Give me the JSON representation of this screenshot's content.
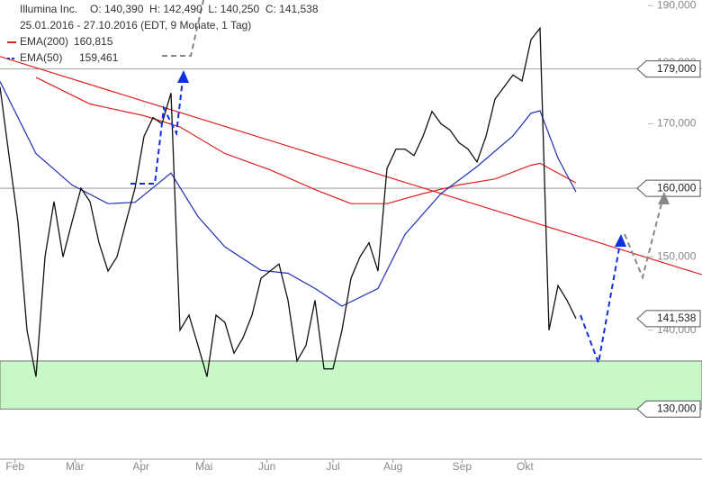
{
  "chart_data": {
    "type": "line",
    "log_scale": true,
    "grid": false,
    "header": {
      "name": "Illumina Inc.",
      "ohlc": "O: 140,390  H: 142,490  L: 140,250  C: 141,538",
      "range": "25.01.2016 - 27.10.2016 (EDT, 9 Monate, 1 Tag)"
    },
    "xlim": [
      0,
      234
    ],
    "xticks": [
      {
        "value": 5,
        "label": "Feb"
      },
      {
        "value": 25,
        "label": "Mär"
      },
      {
        "value": 47,
        "label": "Apr"
      },
      {
        "value": 68,
        "label": "Mai"
      },
      {
        "value": 89,
        "label": "Jun"
      },
      {
        "value": 111,
        "label": "Jul"
      },
      {
        "value": 131,
        "label": "Aug"
      },
      {
        "value": 154,
        "label": "Sep"
      },
      {
        "value": 175,
        "label": "Okt"
      }
    ],
    "ylim": [
      124000,
      191000
    ],
    "yticks": [
      {
        "value": 130000,
        "label": "130,000"
      },
      {
        "value": 140000,
        "label": "140,000"
      },
      {
        "value": 150000,
        "label": "150,000"
      },
      {
        "value": 160000,
        "label": "160,000"
      },
      {
        "value": 170000,
        "label": "170,000"
      },
      {
        "value": 180000,
        "label": "180,000"
      },
      {
        "value": 190000,
        "label": "190,000"
      }
    ],
    "price": {
      "color": "#111111",
      "x": [
        0,
        3,
        6,
        9,
        12,
        15,
        18,
        21,
        24,
        27,
        30,
        33,
        36,
        39,
        42,
        45,
        48,
        51,
        54,
        57,
        60,
        63,
        66,
        69,
        72,
        75,
        78,
        81,
        84,
        87,
        90,
        93,
        96,
        99,
        102,
        105,
        108,
        111,
        114,
        117,
        120,
        123,
        126,
        129,
        132,
        135,
        138,
        141,
        144,
        147,
        150,
        153,
        156,
        159,
        162,
        165,
        168,
        171,
        174,
        177,
        180,
        183,
        186,
        189,
        192
      ],
      "values": [
        176000,
        165000,
        155000,
        140000,
        134000,
        150000,
        158000,
        150000,
        155000,
        160000,
        158000,
        152000,
        148000,
        150000,
        155000,
        160000,
        168000,
        171000,
        170000,
        175000,
        140000,
        142000,
        138000,
        134000,
        142000,
        141000,
        137000,
        139000,
        142000,
        147000,
        148000,
        149000,
        144000,
        136000,
        138000,
        144000,
        135000,
        135000,
        140000,
        147000,
        150000,
        152000,
        148000,
        163000,
        166000,
        166000,
        165000,
        168000,
        172000,
        170000,
        169000,
        167000,
        166000,
        164000,
        168000,
        174000,
        176000,
        178000,
        177000,
        184000,
        186000,
        140000,
        146000,
        144000,
        141538
      ]
    },
    "series": [
      {
        "name": "EMA(200)",
        "value_label": "160,815",
        "color": "#e02020",
        "x": [
          12,
          30,
          48,
          60,
          75,
          90,
          105,
          117,
          129,
          141,
          153,
          165,
          177,
          180,
          192
        ],
        "values": [
          177600,
          173200,
          171300,
          169500,
          165300,
          162800,
          159800,
          157700,
          157700,
          159200,
          160500,
          161400,
          163500,
          163800,
          160815
        ]
      },
      {
        "name": "EMA(50)",
        "value_label": "159,461",
        "color": "#2030b0",
        "x": [
          0,
          12,
          24,
          36,
          45,
          57,
          66,
          75,
          87,
          96,
          105,
          114,
          126,
          135,
          147,
          159,
          171,
          177,
          180,
          186,
          192
        ],
        "values": [
          176900,
          165300,
          160500,
          157700,
          157900,
          162300,
          155800,
          151400,
          148100,
          147700,
          145600,
          143200,
          145600,
          153200,
          159200,
          163300,
          168100,
          171700,
          172100,
          164600,
          159461
        ]
      }
    ],
    "trendline": {
      "color": "#e02020",
      "x": [
        0,
        234
      ],
      "values": [
        181100,
        147500
      ]
    },
    "levels": [
      {
        "value": 179000,
        "label": "179,000"
      },
      {
        "value": 160000,
        "label": "160,000"
      }
    ],
    "zone": {
      "color": "#c8f8c8",
      "range": [
        130000,
        136000
      ]
    },
    "price_labels": [
      {
        "value": 179000,
        "label": "179,000"
      },
      {
        "value": 160000,
        "label": "160,000"
      },
      {
        "value": 141538,
        "label": "141,538"
      },
      {
        "value": 130000,
        "label": "130,000"
      }
    ]
  }
}
